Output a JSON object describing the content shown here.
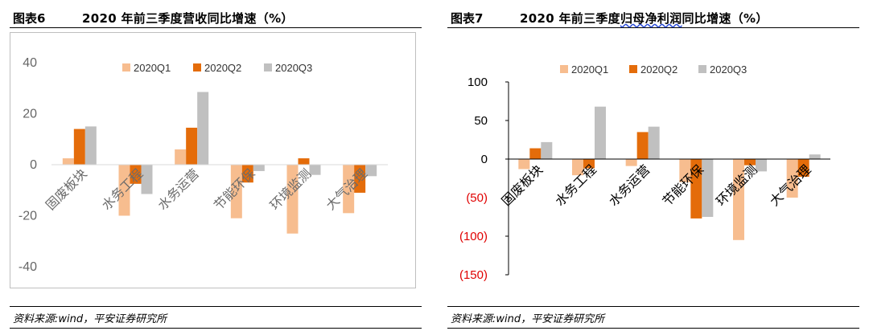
{
  "colors": {
    "q1": "#f7bd8f",
    "q2": "#e46c0a",
    "q3": "#c0c0c0",
    "neg": "#e00000"
  },
  "left": {
    "figure_label": "图表6",
    "title": "2020 年前三季度营收同比增速（%）",
    "source": "资料来源:wind，平安证券研究所"
  },
  "right": {
    "figure_label": "图表7",
    "title_pre": "2020 年前三季度",
    "title_wavy": "归母净利润",
    "title_post": "同比增速（%）",
    "source": "资料来源:wind，平安证券研究所"
  },
  "chart_data": [
    {
      "type": "bar",
      "title": "2020 年前三季度营收同比增速（%）",
      "categories": [
        "固废板块",
        "水务工程",
        "水务运营",
        "节能环保",
        "环境监测",
        "大气治理"
      ],
      "series": [
        {
          "name": "2020Q1",
          "values": [
            2.5,
            -20,
            6,
            -21,
            -27,
            -19
          ]
        },
        {
          "name": "2020Q2",
          "values": [
            14,
            -7.5,
            14.5,
            -7,
            2.5,
            -11
          ]
        },
        {
          "name": "2020Q3",
          "values": [
            15,
            -11.5,
            28.5,
            -2.5,
            -4,
            -4.5
          ]
        }
      ],
      "ylim": [
        -40,
        40
      ],
      "yticks": [
        {
          "value": -40,
          "label": "-40"
        },
        {
          "value": -20,
          "label": "-20"
        },
        {
          "value": 0,
          "label": "0"
        },
        {
          "value": 20,
          "label": "20"
        },
        {
          "value": 40,
          "label": "40"
        }
      ],
      "legend": "top",
      "grid": false
    },
    {
      "type": "bar",
      "title": "2020 年前三季度归母净利润同比增速（%）",
      "categories": [
        "固废板块",
        "水务工程",
        "水务运营",
        "节能环保",
        "环境监测",
        "大气治理"
      ],
      "series": [
        {
          "name": "2020Q1",
          "values": [
            -13,
            -21,
            -9,
            -30,
            -105,
            -50
          ]
        },
        {
          "name": "2020Q2",
          "values": [
            14,
            -12,
            35,
            -77,
            -8,
            -23
          ]
        },
        {
          "name": "2020Q3",
          "values": [
            22,
            68,
            42,
            -75,
            -16,
            6
          ]
        }
      ],
      "ylim": [
        -150,
        100
      ],
      "yticks": [
        {
          "value": 100,
          "label": "100"
        },
        {
          "value": 50,
          "label": "50"
        },
        {
          "value": 0,
          "label": "0"
        },
        {
          "value": -50,
          "label": "(50)"
        },
        {
          "value": -100,
          "label": "(100)"
        },
        {
          "value": -150,
          "label": "(150)"
        }
      ],
      "legend": "top",
      "grid": false
    }
  ]
}
